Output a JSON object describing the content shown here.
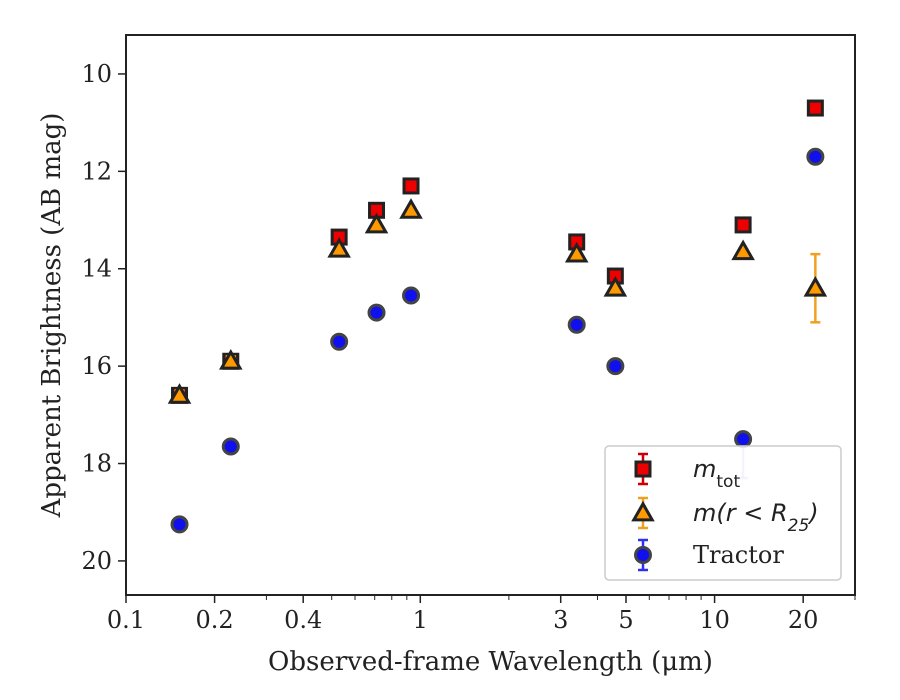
{
  "chart_data": {
    "type": "scatter",
    "xlabel": "Observed-frame Wavelength (μm)",
    "ylabel": "Apparent Brightness (AB mag)",
    "xscale": "log",
    "xlim": [
      0.1,
      30
    ],
    "ylim": [
      20.7,
      9.2
    ],
    "y_inverted": true,
    "x_ticks": [
      {
        "value": 0.1,
        "label": "0.1"
      },
      {
        "value": 0.2,
        "label": "0.2"
      },
      {
        "value": 0.4,
        "label": "0.4"
      },
      {
        "value": 1,
        "label": "1"
      },
      {
        "value": 3,
        "label": "3"
      },
      {
        "value": 5,
        "label": "5"
      },
      {
        "value": 10,
        "label": "10"
      },
      {
        "value": 20,
        "label": "20"
      }
    ],
    "y_ticks": [
      {
        "value": 10,
        "label": "10"
      },
      {
        "value": 12,
        "label": "12"
      },
      {
        "value": 14,
        "label": "14"
      },
      {
        "value": 16,
        "label": "16"
      },
      {
        "value": 18,
        "label": "18"
      },
      {
        "value": 20,
        "label": "20"
      }
    ],
    "grid": false,
    "legend_position": "bottom-right",
    "series": [
      {
        "name": "m_tot",
        "marker": "square",
        "color": "#ee0000",
        "errcolor": "#cc0000",
        "points": [
          {
            "x": 0.152,
            "y": 16.6,
            "err": 0.1
          },
          {
            "x": 0.227,
            "y": 15.9,
            "err": 0.1
          },
          {
            "x": 0.53,
            "y": 13.35,
            "err": 0.05
          },
          {
            "x": 0.71,
            "y": 12.8,
            "err": 0.05
          },
          {
            "x": 0.93,
            "y": 12.3,
            "err": 0.05
          },
          {
            "x": 3.4,
            "y": 13.45,
            "err": 0.05
          },
          {
            "x": 4.6,
            "y": 14.15,
            "err": 0.05
          },
          {
            "x": 12.5,
            "y": 13.1,
            "err": 0.05
          },
          {
            "x": 22.0,
            "y": 10.7,
            "err": 0.05
          }
        ]
      },
      {
        "name": "m(r < R25)",
        "marker": "triangle",
        "color": "#ff9900",
        "errcolor": "#f0a020",
        "points": [
          {
            "x": 0.152,
            "y": 16.6,
            "err": 0.1
          },
          {
            "x": 0.227,
            "y": 15.9,
            "err": 0.1
          },
          {
            "x": 0.53,
            "y": 13.6,
            "err": 0.05
          },
          {
            "x": 0.71,
            "y": 13.1,
            "err": 0.05
          },
          {
            "x": 0.93,
            "y": 12.8,
            "err": 0.05
          },
          {
            "x": 3.4,
            "y": 13.7,
            "err": 0.05
          },
          {
            "x": 4.6,
            "y": 14.4,
            "err": 0.05
          },
          {
            "x": 12.5,
            "y": 13.65,
            "err": 0.05
          },
          {
            "x": 22.0,
            "y": 14.4,
            "err": 0.7
          }
        ]
      },
      {
        "name": "Tractor",
        "marker": "circle",
        "color": "#1010ee",
        "errcolor": "#3030f0",
        "points": [
          {
            "x": 0.152,
            "y": 19.25,
            "err": 0.05
          },
          {
            "x": 0.227,
            "y": 17.65,
            "err": 0.05
          },
          {
            "x": 0.53,
            "y": 15.5,
            "err": 0.05
          },
          {
            "x": 0.71,
            "y": 14.9,
            "err": 0.05
          },
          {
            "x": 0.93,
            "y": 14.55,
            "err": 0.05
          },
          {
            "x": 3.4,
            "y": 15.15,
            "err": 0.05
          },
          {
            "x": 4.6,
            "y": 16.0,
            "err": 0.05
          },
          {
            "x": 12.5,
            "y": 17.5,
            "err": 0.05,
            "err_low": 0.8
          },
          {
            "x": 22.0,
            "y": 11.7,
            "err": 0.05
          }
        ]
      }
    ],
    "legend": [
      {
        "series": 0,
        "prefix": "m",
        "sub": "tot",
        "suffix": ""
      },
      {
        "series": 1,
        "prefix": "m(r < R",
        "sub": "25",
        "suffix": ")"
      },
      {
        "series": 2,
        "prefix": "Tractor",
        "sub": "",
        "suffix": "",
        "plain": true
      }
    ]
  }
}
